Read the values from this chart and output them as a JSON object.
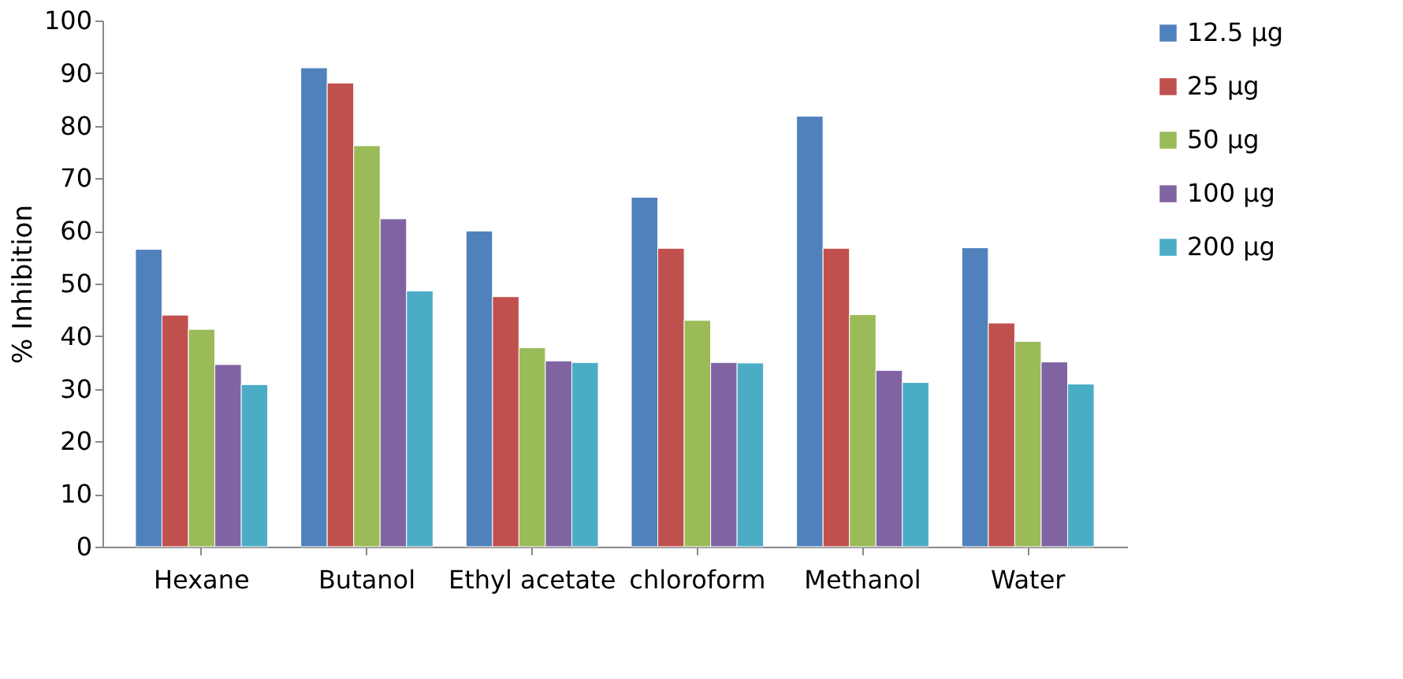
{
  "chart_data": {
    "type": "bar",
    "ylabel": "% Inhibition",
    "categories": [
      "Hexane",
      "Butanol",
      "Ethyl acetate",
      "chloroform",
      "Methanol",
      "Water"
    ],
    "series": [
      {
        "name": "12.5 µg",
        "color": "#4f81bd",
        "values": [
          56.5,
          91,
          60,
          66.4,
          81.8,
          56.8
        ]
      },
      {
        "name": "25 µg",
        "color": "#c0504d",
        "values": [
          44,
          88.1,
          47.5,
          56.7,
          56.7,
          42.5
        ]
      },
      {
        "name": "50 µg",
        "color": "#9bbb59",
        "values": [
          41.3,
          76.2,
          37.8,
          43,
          44.1,
          39
        ]
      },
      {
        "name": "100 µg",
        "color": "#8064a2",
        "values": [
          34.6,
          62.3,
          35.3,
          35,
          33.5,
          35.1
        ]
      },
      {
        "name": "200 µg",
        "color": "#4bacc6",
        "values": [
          30.8,
          48.6,
          35,
          34.9,
          31.2,
          30.9
        ]
      }
    ],
    "ylim": [
      0,
      100
    ],
    "yticks": [
      0,
      10,
      20,
      30,
      40,
      50,
      60,
      70,
      80,
      90,
      100
    ],
    "grid": false,
    "legend": "right"
  }
}
